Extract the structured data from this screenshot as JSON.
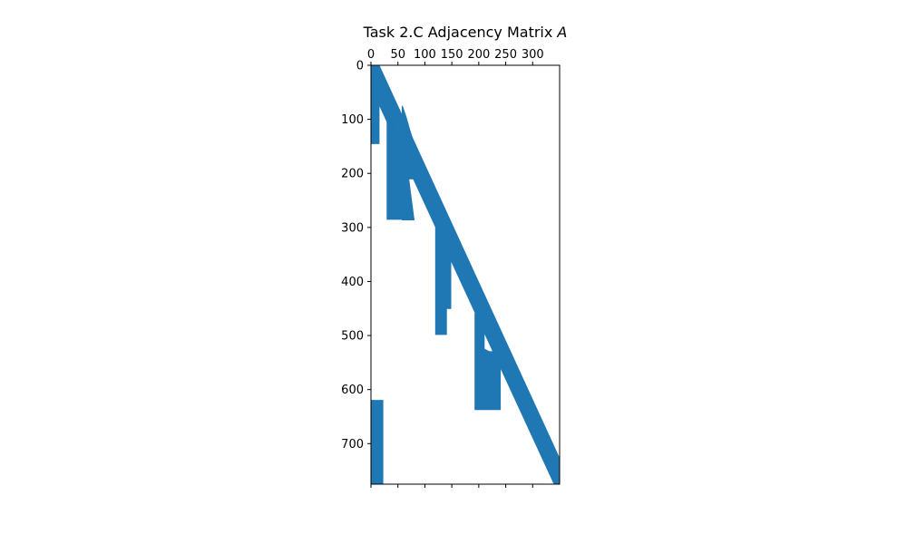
{
  "chart_data": {
    "type": "heatmap",
    "title": "Task 2.C Adjacency Matrix ",
    "title_symbol": "A",
    "xlabel": "",
    "ylabel": "",
    "x_ticks": [
      0,
      50,
      100,
      150,
      200,
      250,
      300
    ],
    "y_ticks": [
      0,
      100,
      200,
      300,
      400,
      500,
      600,
      700
    ],
    "x_tick_labels": [
      "0",
      "50",
      "100",
      "150",
      "200",
      "250",
      "300"
    ],
    "y_tick_labels": [
      "0",
      "100",
      "200",
      "300",
      "400",
      "500",
      "600",
      "700"
    ],
    "xlim": [
      0,
      350
    ],
    "ylim": [
      0,
      775
    ],
    "x_axis_position": "top",
    "grid": false,
    "marker_color": "#1f77b4",
    "regions": [
      {
        "name": "diagonal-band",
        "polygon": [
          [
            0,
            0
          ],
          [
            15,
            0
          ],
          [
            350,
            728
          ],
          [
            350,
            775
          ],
          [
            340,
            775
          ],
          [
            0,
            40
          ]
        ]
      },
      {
        "name": "block-1",
        "polygon": [
          [
            0,
            0
          ],
          [
            5,
            0
          ],
          [
            5,
            30
          ],
          [
            15,
            45
          ],
          [
            15,
            145
          ],
          [
            0,
            145
          ]
        ]
      },
      {
        "name": "block-2",
        "polygon": [
          [
            30,
            97
          ],
          [
            40,
            108
          ],
          [
            40,
            130
          ],
          [
            58,
            130
          ],
          [
            58,
            285
          ],
          [
            30,
            285
          ]
        ]
      },
      {
        "name": "block-3",
        "polygon": [
          [
            58,
            75
          ],
          [
            65,
            95
          ],
          [
            72,
            120
          ],
          [
            80,
            145
          ],
          [
            85,
            160
          ],
          [
            80,
            175
          ],
          [
            80,
            210
          ],
          [
            70,
            210
          ],
          [
            80,
            286
          ],
          [
            58,
            286
          ]
        ]
      },
      {
        "name": "block-4",
        "polygon": [
          [
            120,
            263
          ],
          [
            140,
            280
          ],
          [
            148,
            290
          ],
          [
            148,
            450
          ],
          [
            140,
            450
          ],
          [
            140,
            498
          ],
          [
            120,
            498
          ]
        ]
      },
      {
        "name": "block-5",
        "polygon": [
          [
            193,
            460
          ],
          [
            210,
            470
          ],
          [
            210,
            525
          ],
          [
            220,
            530
          ],
          [
            240,
            530
          ],
          [
            240,
            637
          ],
          [
            193,
            637
          ]
        ]
      },
      {
        "name": "block-6",
        "polygon": [
          [
            0,
            620
          ],
          [
            22,
            620
          ],
          [
            22,
            775
          ],
          [
            0,
            775
          ]
        ]
      }
    ]
  }
}
